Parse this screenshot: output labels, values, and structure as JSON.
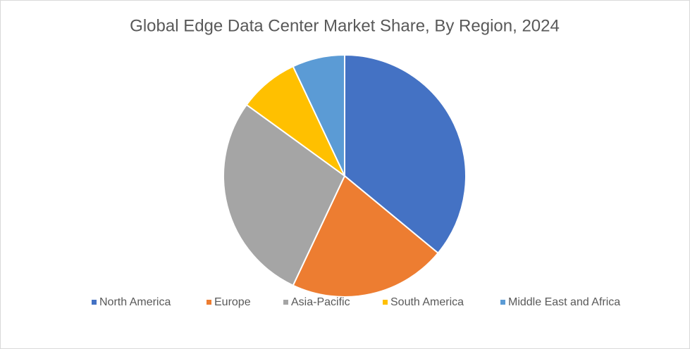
{
  "chart_data": {
    "type": "pie",
    "title": "Global Edge Data Center Market Share, By Region, 2024",
    "categories": [
      "North America",
      "Europe",
      "Asia-Pacific",
      "South America",
      "Middle East and Africa"
    ],
    "values": [
      36,
      21,
      28,
      8,
      7
    ],
    "colors": [
      "#4472c4",
      "#ed7d31",
      "#a5a5a5",
      "#ffc000",
      "#5b9bd5"
    ],
    "legend": "bottom"
  }
}
